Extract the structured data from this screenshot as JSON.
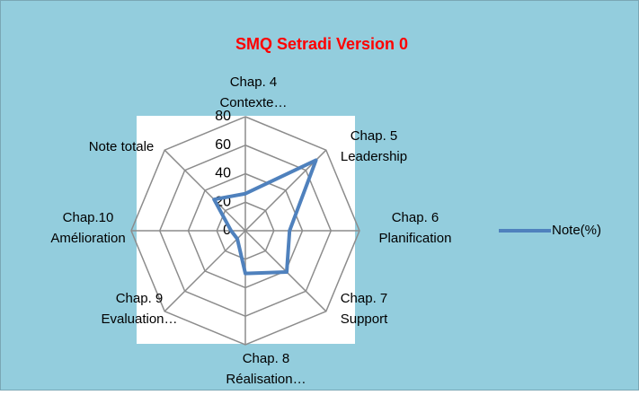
{
  "chart_data": {
    "type": "radar",
    "title": "SMQ Setradi Version 0",
    "categories": [
      [
        "Chap. 4",
        "Contexte…"
      ],
      [
        "Chap. 5",
        "Leadership"
      ],
      [
        "Chap. 6",
        "Planification"
      ],
      [
        "Chap. 7",
        "Support"
      ],
      [
        "Chap. 8",
        "Réalisation…"
      ],
      [
        "Chap. 9",
        "Evaluation…"
      ],
      [
        "Chap.10",
        "Amélioration"
      ],
      [
        "Note totale"
      ]
    ],
    "series": [
      {
        "name": "Note(%)",
        "color": "#4f81bd",
        "values": [
          26,
          70,
          31,
          41,
          30,
          8,
          10,
          31
        ]
      }
    ],
    "ylim": [
      0,
      80
    ],
    "yticks": [
      0,
      20,
      40,
      60,
      80
    ],
    "grid": true,
    "legend": "right"
  }
}
